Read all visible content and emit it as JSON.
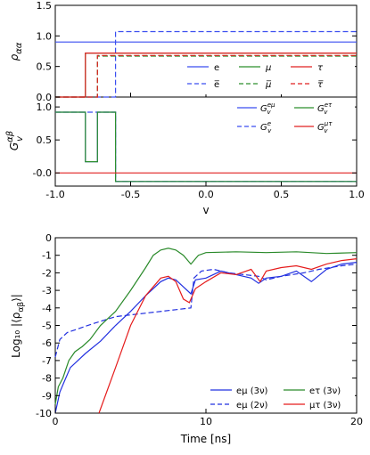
{
  "chart_data": [
    {
      "type": "line",
      "panel": "top",
      "ylabel": "ρ_αα",
      "xlim": [
        -1.0,
        1.0
      ],
      "ylim": [
        0,
        1.5
      ],
      "yticks": [
        "0.0",
        "0.5",
        "1.0",
        "1.5"
      ],
      "legend_position": "lower-right",
      "series": [
        {
          "name": "e",
          "color": "#3a4ef0",
          "dash": false,
          "points": [
            [
              -1.0,
              0.9
            ],
            [
              1.0,
              0.9
            ]
          ]
        },
        {
          "name": "e̅",
          "color": "#3a4ef0",
          "dash": true,
          "points": [
            [
              -1.0,
              0.0
            ],
            [
              -0.6,
              0.0
            ],
            [
              -0.6,
              1.07
            ],
            [
              1.0,
              1.07
            ]
          ]
        },
        {
          "name": "μ",
          "color": "#2c8f2c",
          "dash": false,
          "points": [
            [
              -1.0,
              0.0
            ],
            [
              -0.8,
              0.0
            ],
            [
              -0.8,
              0.72
            ],
            [
              1.0,
              0.72
            ]
          ]
        },
        {
          "name": "μ̅",
          "color": "#2c8f2c",
          "dash": true,
          "points": [
            [
              -1.0,
              0.0
            ],
            [
              -0.72,
              0.0
            ],
            [
              -0.72,
              0.67
            ],
            [
              1.0,
              0.67
            ]
          ]
        },
        {
          "name": "τ",
          "color": "#e02020",
          "dash": false,
          "points": [
            [
              -1.0,
              0.0
            ],
            [
              -0.8,
              0.0
            ],
            [
              -0.8,
              0.72
            ],
            [
              1.0,
              0.72
            ]
          ]
        },
        {
          "name": "τ̅",
          "color": "#e02020",
          "dash": true,
          "points": [
            [
              -1.0,
              0.0
            ],
            [
              -0.72,
              0.0
            ],
            [
              -0.72,
              0.68
            ],
            [
              1.0,
              0.68
            ]
          ]
        }
      ]
    },
    {
      "type": "line",
      "panel": "middle",
      "ylabel": "G_v^αβ",
      "xlabel": "v",
      "xlim": [
        -1.0,
        1.0
      ],
      "ylim": [
        -0.2,
        1.15
      ],
      "xticks": [
        "-1.0",
        "-0.5",
        "0.0",
        "0.5",
        "1.0"
      ],
      "yticks": [
        "-0.0",
        "0.5",
        "1.0"
      ],
      "legend_position": "top-right",
      "series": [
        {
          "name": "G_v^eμ",
          "color": "#3a4ef0",
          "dash": false,
          "points": [
            [
              -1.0,
              0.92
            ],
            [
              -0.8,
              0.92
            ],
            [
              -0.8,
              0.17
            ],
            [
              -0.72,
              0.17
            ],
            [
              -0.72,
              0.92
            ],
            [
              -0.6,
              0.92
            ],
            [
              -0.6,
              -0.13
            ],
            [
              1.0,
              -0.13
            ]
          ]
        },
        {
          "name": "G_v^e",
          "color": "#3a4ef0",
          "dash": true,
          "points": [
            [
              -1.0,
              0.92
            ],
            [
              -0.6,
              0.92
            ],
            [
              -0.6,
              -0.13
            ],
            [
              1.0,
              -0.13
            ]
          ]
        },
        {
          "name": "G_v^eτ",
          "color": "#2c8f2c",
          "dash": false,
          "points": [
            [
              -1.0,
              0.92
            ],
            [
              -0.8,
              0.92
            ],
            [
              -0.8,
              0.17
            ],
            [
              -0.72,
              0.17
            ],
            [
              -0.72,
              0.92
            ],
            [
              -0.6,
              0.92
            ],
            [
              -0.6,
              -0.13
            ],
            [
              1.0,
              -0.13
            ]
          ]
        },
        {
          "name": "G_v^μτ",
          "color": "#e02020",
          "dash": false,
          "points": [
            [
              -1.0,
              0.0
            ],
            [
              1.0,
              0.0
            ]
          ]
        }
      ]
    },
    {
      "type": "line",
      "panel": "bottom",
      "ylabel": "Log10 |⟨ρ_αβ⟩|",
      "xlabel": "Time [ns]",
      "xlim": [
        0,
        20
      ],
      "ylim": [
        -10,
        0
      ],
      "xticks": [
        "0",
        "10",
        "20"
      ],
      "yticks": [
        "0",
        "-1",
        "-2",
        "-3",
        "-4",
        "-5",
        "-6",
        "-7",
        "-8",
        "-9",
        "-10"
      ],
      "legend_position": "lower-right",
      "series": [
        {
          "name": "eμ (3ν)",
          "color": "#2230e0",
          "dash": false,
          "points": [
            [
              0,
              -10
            ],
            [
              0.3,
              -8.8
            ],
            [
              0.6,
              -8.2
            ],
            [
              1.0,
              -7.4
            ],
            [
              1.5,
              -7.0
            ],
            [
              2.0,
              -6.6
            ],
            [
              3.0,
              -5.9
            ],
            [
              4.0,
              -5.0
            ],
            [
              5.0,
              -4.2
            ],
            [
              6.0,
              -3.3
            ],
            [
              7.0,
              -2.5
            ],
            [
              7.5,
              -2.3
            ],
            [
              8.0,
              -2.4
            ],
            [
              8.5,
              -2.8
            ],
            [
              9.0,
              -3.2
            ],
            [
              9.3,
              -2.4
            ],
            [
              10.0,
              -2.3
            ],
            [
              11.0,
              -1.9
            ],
            [
              12.0,
              -2.1
            ],
            [
              13.0,
              -2.3
            ],
            [
              13.5,
              -2.6
            ],
            [
              14.0,
              -2.3
            ],
            [
              15.0,
              -2.2
            ],
            [
              16.0,
              -1.9
            ],
            [
              17.0,
              -2.5
            ],
            [
              18.0,
              -1.8
            ],
            [
              19.0,
              -1.5
            ],
            [
              20.0,
              -1.4
            ]
          ]
        },
        {
          "name": "eμ (2ν)",
          "color": "#2230e0",
          "dash": true,
          "points": [
            [
              0,
              -6.8
            ],
            [
              0.3,
              -5.8
            ],
            [
              0.8,
              -5.4
            ],
            [
              1.5,
              -5.2
            ],
            [
              2.5,
              -4.9
            ],
            [
              4.0,
              -4.5
            ],
            [
              6.0,
              -4.3
            ],
            [
              8.0,
              -4.1
            ],
            [
              9.0,
              -4.0
            ],
            [
              9.2,
              -2.3
            ],
            [
              9.7,
              -1.9
            ],
            [
              10.5,
              -1.8
            ],
            [
              11.5,
              -2.0
            ],
            [
              12.5,
              -2.1
            ],
            [
              13.5,
              -2.2
            ],
            [
              14.0,
              -2.4
            ],
            [
              15.0,
              -2.2
            ],
            [
              16.5,
              -2.0
            ],
            [
              17.5,
              -1.8
            ],
            [
              19.0,
              -1.6
            ],
            [
              20.0,
              -1.5
            ]
          ]
        },
        {
          "name": "eτ (3ν)",
          "color": "#2a8a2a",
          "dash": false,
          "points": [
            [
              0,
              -9.5
            ],
            [
              0.2,
              -8.5
            ],
            [
              0.5,
              -8.0
            ],
            [
              0.9,
              -7.0
            ],
            [
              1.3,
              -6.5
            ],
            [
              1.8,
              -6.2
            ],
            [
              2.3,
              -5.8
            ],
            [
              3.0,
              -5.0
            ],
            [
              4.0,
              -4.2
            ],
            [
              5.0,
              -3.0
            ],
            [
              6.0,
              -1.7
            ],
            [
              6.5,
              -1.0
            ],
            [
              7.0,
              -0.7
            ],
            [
              7.5,
              -0.6
            ],
            [
              8.0,
              -0.7
            ],
            [
              8.5,
              -1.0
            ],
            [
              9.0,
              -1.5
            ],
            [
              9.5,
              -1.0
            ],
            [
              10.0,
              -0.85
            ],
            [
              12.0,
              -0.8
            ],
            [
              14.0,
              -0.85
            ],
            [
              16.0,
              -0.8
            ],
            [
              18.0,
              -0.9
            ],
            [
              20.0,
              -0.85
            ]
          ]
        },
        {
          "name": "μτ (3ν)",
          "color": "#e51c1c",
          "dash": false,
          "points": [
            [
              2.9,
              -10
            ],
            [
              4.0,
              -7.4
            ],
            [
              5.0,
              -5.0
            ],
            [
              6.0,
              -3.3
            ],
            [
              7.0,
              -2.3
            ],
            [
              7.5,
              -2.2
            ],
            [
              8.0,
              -2.5
            ],
            [
              8.5,
              -3.5
            ],
            [
              8.9,
              -3.7
            ],
            [
              9.3,
              -2.9
            ],
            [
              10.0,
              -2.5
            ],
            [
              11.0,
              -2.0
            ],
            [
              12.0,
              -2.1
            ],
            [
              13.0,
              -1.8
            ],
            [
              13.6,
              -2.5
            ],
            [
              14.0,
              -1.9
            ],
            [
              15.0,
              -1.7
            ],
            [
              16.0,
              -1.6
            ],
            [
              17.0,
              -1.8
            ],
            [
              18.0,
              -1.5
            ],
            [
              19.0,
              -1.3
            ],
            [
              20.0,
              -1.2
            ]
          ]
        }
      ]
    }
  ],
  "legend1": {
    "e": "e",
    "ebar": "e̅",
    "mu": "μ",
    "mubar": "μ̅",
    "tau": "τ",
    "taubar": "τ̅"
  },
  "legend2": {
    "emu_base": "G",
    "emu_sup": "eμ",
    "e_sup": "e",
    "etau_sup": "eτ",
    "mutau_sup": "μτ",
    "sub": "v"
  },
  "legend3": {
    "emu3": "eμ (3ν)",
    "emu2": "eμ (2ν)",
    "etau3": "eτ (3ν)",
    "mutau3": "μτ (3ν)"
  },
  "labels": {
    "top_y_base": "ρ",
    "top_y_sub": "αα",
    "mid_y_base": "G",
    "mid_y_sup": "αβ",
    "mid_y_sub": "v",
    "mid_x": "v",
    "bot_y": "Log₁₀ |⟨ρ",
    "bot_y_sub": "αβ",
    "bot_y_end": "⟩|",
    "bot_x": "Time [ns]"
  },
  "colors": {
    "blue": "#3a4ef0",
    "green": "#2c8f2c",
    "red": "#e02020"
  }
}
